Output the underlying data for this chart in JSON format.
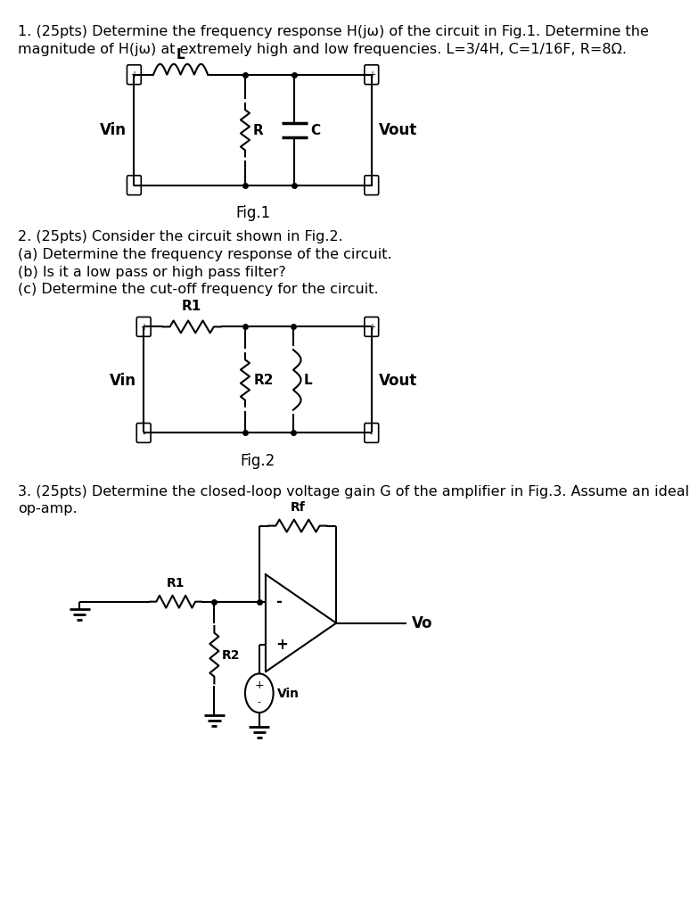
{
  "bg_color": "#ffffff",
  "text_color": "#000000",
  "line_color": "#000000",
  "fig_width": 7.32,
  "fig_height": 10.24,
  "q1_text_line1": "1. (25pts) Determine the frequency response H(jω) of the circuit in Fig.1. Determine the",
  "q1_text_line2": "magnitude of H(jω) at extremely high and low frequencies. L=3/4H, C=1/16F, R=8Ω.",
  "q2_text_line1": "2. (25pts) Consider the circuit shown in Fig.2.",
  "q2_text_line2": "(a) Determine the frequency response of the circuit.",
  "q2_text_line3": "(b) Is it a low pass or high pass filter?",
  "q2_text_line4": "(c) Determine the cut-off frequency for the circuit.",
  "q3_text_line1": "3. (25pts) Determine the closed-loop voltage gain G of the amplifier in Fig.3. Assume an ideal",
  "q3_text_line2": "op-amp.",
  "fig1_caption": "Fig.1",
  "fig2_caption": "Fig.2"
}
